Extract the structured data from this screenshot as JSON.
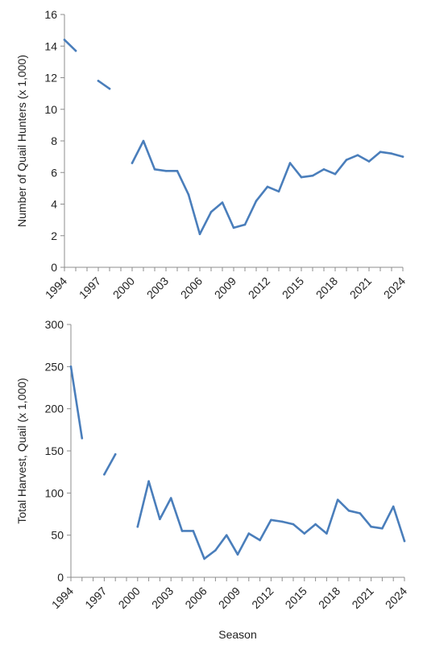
{
  "colors": {
    "series": "#4a7ebb",
    "axis": "#8c8c8c",
    "text": "#222222"
  },
  "chart_data": [
    {
      "type": "line",
      "ylabel": "Number of Quail Hunters (x 1,000)",
      "xlabel": "",
      "ylim": [
        0,
        16
      ],
      "yticks": [
        0,
        2,
        4,
        6,
        8,
        10,
        12,
        14,
        16
      ],
      "xlim": [
        1994,
        2024
      ],
      "xticks": [
        "1994",
        "1997",
        "2000",
        "2003",
        "2006",
        "2009",
        "2012",
        "2015",
        "2018",
        "2021",
        "2024"
      ],
      "grid": false,
      "series": [
        {
          "x": [
            1994,
            1995,
            1996,
            1997,
            1998,
            1999,
            2000,
            2001,
            2002,
            2003,
            2004,
            2005,
            2006,
            2007,
            2008,
            2009,
            2010,
            2011,
            2012,
            2013,
            2014,
            2015,
            2016,
            2017,
            2018,
            2019,
            2020,
            2021,
            2022,
            2023,
            2024
          ],
          "y": [
            14.4,
            13.7,
            null,
            11.8,
            11.3,
            null,
            6.6,
            8.0,
            6.2,
            6.1,
            6.1,
            4.6,
            2.1,
            3.5,
            4.1,
            2.5,
            2.7,
            4.2,
            5.1,
            4.8,
            6.6,
            5.7,
            5.8,
            6.2,
            5.9,
            6.8,
            7.1,
            6.7,
            7.3,
            7.2,
            7.0
          ]
        }
      ]
    },
    {
      "type": "line",
      "ylabel": "Total Harvest, Quail (x 1,000)",
      "xlabel": "Season",
      "ylim": [
        0,
        300
      ],
      "yticks": [
        0,
        50,
        100,
        150,
        200,
        250,
        300
      ],
      "xlim": [
        1994,
        2024
      ],
      "xticks": [
        "1994",
        "1997",
        "2000",
        "2003",
        "2006",
        "2009",
        "2012",
        "2015",
        "2018",
        "2021",
        "2024"
      ],
      "grid": false,
      "series": [
        {
          "x": [
            1994,
            1995,
            1996,
            1997,
            1998,
            1999,
            2000,
            2001,
            2002,
            2003,
            2004,
            2005,
            2006,
            2007,
            2008,
            2009,
            2010,
            2011,
            2012,
            2013,
            2014,
            2015,
            2016,
            2017,
            2018,
            2019,
            2020,
            2021,
            2022,
            2023,
            2024
          ],
          "y": [
            250,
            165,
            null,
            122,
            146,
            null,
            60,
            114,
            69,
            94,
            55,
            55,
            22,
            32,
            50,
            27,
            52,
            44,
            68,
            66,
            63,
            52,
            63,
            52,
            92,
            79,
            76,
            60,
            58,
            84,
            43
          ]
        }
      ]
    }
  ]
}
